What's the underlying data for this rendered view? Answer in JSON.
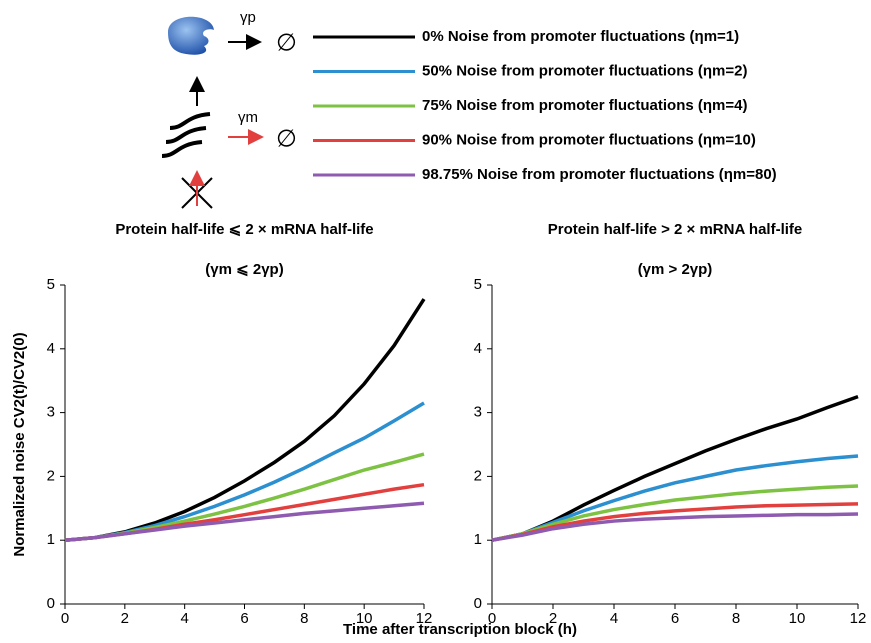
{
  "diagram": {
    "gamma_p": "γp",
    "gamma_m": "γm",
    "null_p": "∅",
    "null_m": "∅"
  },
  "chart_data": [
    {
      "type": "line",
      "title": "Protein half-life ⩽ 2 × mRNA half-life",
      "subtitle": "(γm ⩽ 2γp)",
      "xlabel": "Time after transcription block (h)",
      "ylabel": "Normalized noise CV2(t)/CV2(0)",
      "x": [
        0,
        1,
        2,
        3,
        4,
        5,
        6,
        7,
        8,
        9,
        10,
        11,
        12
      ],
      "xlim": [
        0,
        12
      ],
      "xticks": [
        0,
        2,
        4,
        6,
        8,
        10,
        12
      ],
      "ylim": [
        0,
        5
      ],
      "yticks": [
        0,
        1,
        2,
        3,
        4,
        5
      ],
      "series": [
        {
          "name": "0% Noise from promoter fluctuations (ηm=1)",
          "color": "#000000",
          "values": [
            1,
            1.04,
            1.13,
            1.27,
            1.45,
            1.67,
            1.93,
            2.22,
            2.55,
            2.95,
            3.45,
            4.05,
            4.78
          ]
        },
        {
          "name": "50% Noise from promoter fluctuations (ηm=2)",
          "color": "#2b8fd0",
          "values": [
            1,
            1.04,
            1.12,
            1.23,
            1.37,
            1.53,
            1.71,
            1.91,
            2.13,
            2.37,
            2.6,
            2.87,
            3.15
          ]
        },
        {
          "name": "75% Noise from promoter fluctuations (ηm=4)",
          "color": "#7dc242",
          "values": [
            1,
            1.04,
            1.11,
            1.2,
            1.3,
            1.41,
            1.53,
            1.66,
            1.8,
            1.95,
            2.1,
            2.22,
            2.35
          ]
        },
        {
          "name": "90% Noise from promoter fluctuations (ηm=10)",
          "color": "#e2403e",
          "values": [
            1,
            1.04,
            1.1,
            1.17,
            1.25,
            1.32,
            1.4,
            1.48,
            1.56,
            1.64,
            1.72,
            1.8,
            1.87
          ]
        },
        {
          "name": "98.75% Noise from promoter fluctuations (ηm=80)",
          "color": "#8e5bb0",
          "values": [
            1,
            1.04,
            1.1,
            1.16,
            1.22,
            1.27,
            1.32,
            1.37,
            1.42,
            1.46,
            1.5,
            1.54,
            1.58
          ]
        }
      ]
    },
    {
      "type": "line",
      "title": "Protein half-life > 2 × mRNA half-life",
      "subtitle": "(γm > 2γp)",
      "x": [
        0,
        1,
        2,
        3,
        4,
        5,
        6,
        7,
        8,
        9,
        10,
        11,
        12
      ],
      "xlim": [
        0,
        12
      ],
      "xticks": [
        0,
        2,
        4,
        6,
        8,
        10,
        12
      ],
      "ylim": [
        0,
        5
      ],
      "yticks": [
        0,
        1,
        2,
        3,
        4,
        5
      ],
      "series": [
        {
          "color": "#000000",
          "values": [
            1,
            1.1,
            1.3,
            1.55,
            1.78,
            2.0,
            2.2,
            2.4,
            2.58,
            2.75,
            2.9,
            3.08,
            3.25
          ]
        },
        {
          "color": "#2b8fd0",
          "values": [
            1,
            1.1,
            1.28,
            1.46,
            1.62,
            1.77,
            1.9,
            2.0,
            2.1,
            2.17,
            2.23,
            2.28,
            2.32
          ]
        },
        {
          "color": "#7dc242",
          "values": [
            1,
            1.1,
            1.25,
            1.38,
            1.48,
            1.56,
            1.63,
            1.68,
            1.73,
            1.77,
            1.8,
            1.83,
            1.85
          ]
        },
        {
          "color": "#e2403e",
          "values": [
            1,
            1.09,
            1.21,
            1.3,
            1.37,
            1.42,
            1.46,
            1.49,
            1.52,
            1.54,
            1.55,
            1.56,
            1.57
          ]
        },
        {
          "color": "#8e5bb0",
          "values": [
            1,
            1.08,
            1.18,
            1.25,
            1.3,
            1.33,
            1.35,
            1.37,
            1.38,
            1.39,
            1.4,
            1.4,
            1.41
          ]
        }
      ]
    }
  ]
}
